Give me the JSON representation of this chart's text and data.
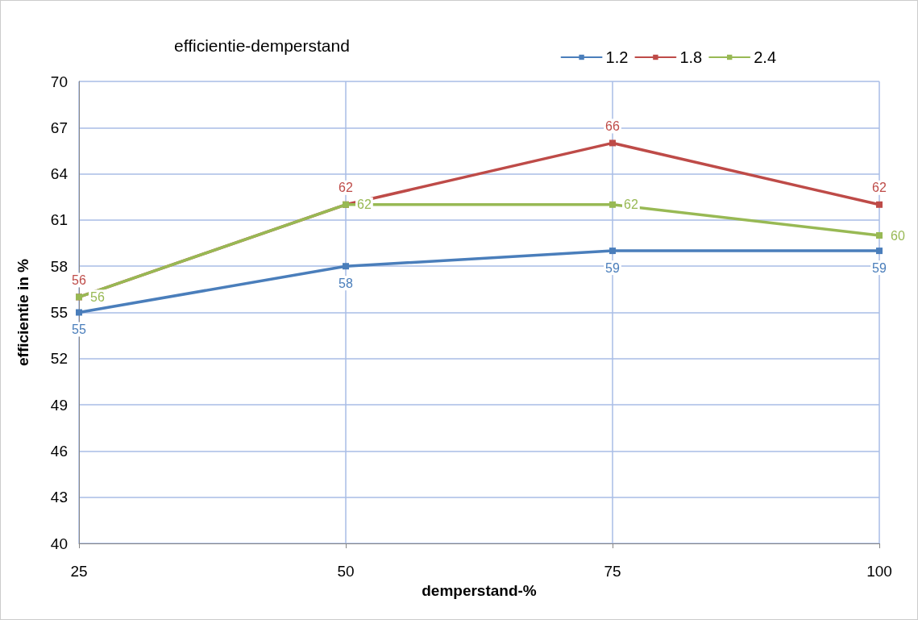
{
  "chart_data": {
    "type": "line",
    "title": "efficientie-demperstand",
    "xlabel": "demperstand-%",
    "ylabel": "efficientie in %",
    "x": [
      25,
      50,
      75,
      100
    ],
    "xlim": [
      25,
      100
    ],
    "xticks": [
      25,
      50,
      75,
      100
    ],
    "ylim": [
      40,
      70
    ],
    "yticks": [
      40,
      43,
      46,
      49,
      52,
      55,
      58,
      61,
      64,
      67,
      70
    ],
    "series": [
      {
        "name": "1.2",
        "color": "#4a7ebb",
        "values": [
          55,
          58,
          59,
          59
        ]
      },
      {
        "name": "1.8",
        "color": "#be4b48",
        "values": [
          56,
          62,
          66,
          62
        ]
      },
      {
        "name": "2.4",
        "color": "#98b954",
        "values": [
          56,
          62,
          62,
          60
        ]
      }
    ],
    "grid": true,
    "legend": "top right",
    "marker": "square",
    "line_style": "solid",
    "data_labels": true
  }
}
